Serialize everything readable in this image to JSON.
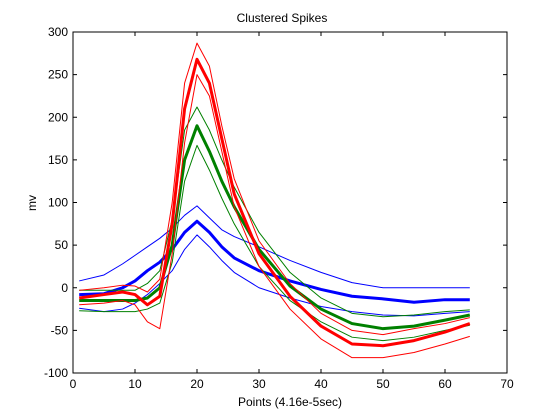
{
  "chart_data": {
    "type": "line",
    "title": "Clustered Spikes",
    "xlabel": "Points (4.16e-5sec)",
    "ylabel": "mv",
    "xlim": [
      0,
      70
    ],
    "ylim": [
      -100,
      300
    ],
    "xticks": [
      0,
      10,
      20,
      30,
      40,
      50,
      60,
      70
    ],
    "yticks": [
      -100,
      -50,
      0,
      50,
      100,
      150,
      200,
      250,
      300
    ],
    "grid": false,
    "legend": "none",
    "x": [
      1,
      5,
      8,
      10,
      12,
      14,
      16,
      18,
      20,
      22,
      24,
      26,
      30,
      35,
      40,
      45,
      50,
      55,
      60,
      64
    ],
    "series": [
      {
        "color": "#0000ff",
        "role": "mean",
        "values": [
          -8,
          -7,
          0,
          8,
          20,
          30,
          45,
          65,
          78,
          65,
          48,
          35,
          20,
          8,
          -2,
          -10,
          -13,
          -17,
          -14,
          -14
        ]
      },
      {
        "color": "#0000ff",
        "role": "upper-bound",
        "values": [
          8,
          15,
          28,
          38,
          48,
          58,
          70,
          85,
          96,
          82,
          68,
          60,
          48,
          32,
          18,
          6,
          0,
          0,
          0,
          0
        ]
      },
      {
        "color": "#0000ff",
        "role": "lower-bound",
        "values": [
          -24,
          -28,
          -25,
          -18,
          -8,
          5,
          20,
          45,
          62,
          48,
          32,
          18,
          0,
          -12,
          -22,
          -28,
          -32,
          -33,
          -30,
          -28
        ]
      },
      {
        "color": "#008000",
        "role": "mean",
        "values": [
          -15,
          -15,
          -15,
          -15,
          -12,
          0,
          50,
          150,
          190,
          160,
          125,
          95,
          45,
          2,
          -25,
          -42,
          -48,
          -45,
          -38,
          -32
        ]
      },
      {
        "color": "#008000",
        "role": "upper-bound",
        "values": [
          -3,
          -3,
          -3,
          -3,
          5,
          20,
          80,
          185,
          212,
          185,
          150,
          118,
          65,
          18,
          -12,
          -30,
          -34,
          -32,
          -28,
          -26
        ]
      },
      {
        "color": "#008000",
        "role": "lower-bound",
        "values": [
          -27,
          -28,
          -28,
          -28,
          -25,
          -18,
          30,
          125,
          167,
          138,
          105,
          75,
          25,
          -15,
          -40,
          -58,
          -62,
          -58,
          -50,
          -44
        ]
      },
      {
        "color": "#ff0000",
        "role": "mean",
        "values": [
          -12,
          -8,
          -5,
          -8,
          -20,
          -10,
          75,
          210,
          268,
          240,
          175,
          110,
          40,
          -10,
          -45,
          -66,
          -68,
          -62,
          -52,
          -42
        ]
      },
      {
        "color": "#ff0000",
        "role": "upper-bound",
        "values": [
          -3,
          0,
          3,
          2,
          -5,
          10,
          100,
          240,
          287,
          260,
          190,
          128,
          55,
          5,
          -30,
          -50,
          -55,
          -48,
          -42,
          -35
        ]
      },
      {
        "color": "#ff0000",
        "role": "lower-bound",
        "values": [
          -20,
          -18,
          -15,
          -20,
          -40,
          -48,
          40,
          170,
          250,
          225,
          160,
          95,
          25,
          -25,
          -60,
          -82,
          -82,
          -76,
          -66,
          -57
        ]
      }
    ]
  }
}
